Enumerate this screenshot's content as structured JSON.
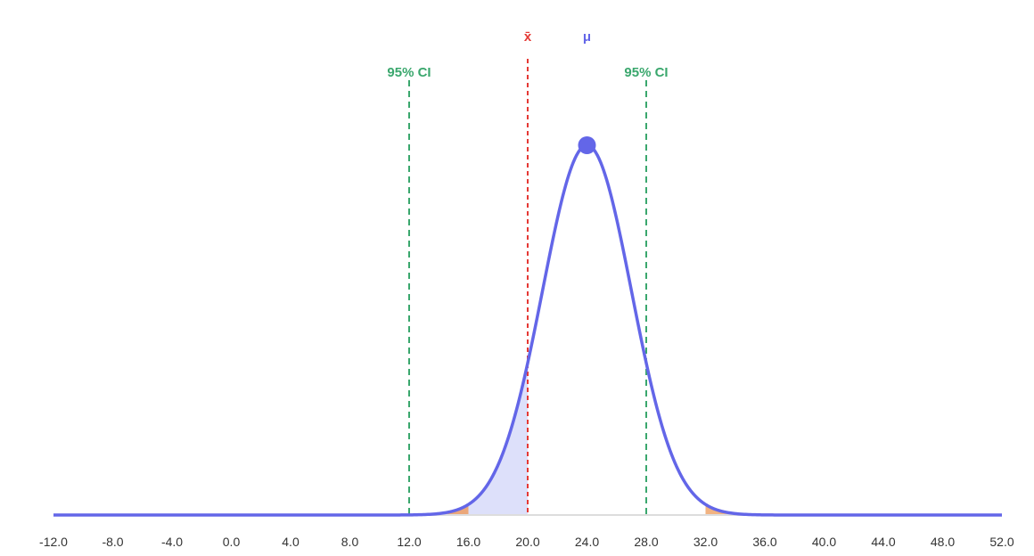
{
  "chart_data": {
    "type": "area",
    "distribution": "normal",
    "mean": 24.0,
    "sd": 3.0,
    "xlim": [
      -12,
      52
    ],
    "x_ticks": [
      "-12.0",
      "-8.0",
      "-4.0",
      "0.0",
      "4.0",
      "8.0",
      "12.0",
      "16.0",
      "20.0",
      "24.0",
      "28.0",
      "32.0",
      "36.0",
      "40.0",
      "44.0",
      "48.0",
      "52.0"
    ],
    "mu": {
      "label": "μ",
      "x": 24.0,
      "color": "#6366e8"
    },
    "sample_mean": {
      "label": "x̄",
      "x": 20.0,
      "color": "#e53935"
    },
    "ci_lines": [
      {
        "label": "95% CI",
        "x": 12.0,
        "color": "#3aa76d"
      },
      {
        "label": "95% CI",
        "x": 28.0,
        "color": "#3aa76d"
      }
    ],
    "shaded_regions": [
      {
        "name": "left-tail",
        "from": 12.0,
        "to": 16.0,
        "color": "#eba77a"
      },
      {
        "name": "middle",
        "from": 16.0,
        "to": 20.0,
        "color": "#dde0fa"
      },
      {
        "name": "right-tail",
        "from": 32.0,
        "to": 36.0,
        "color": "#f1b382"
      }
    ],
    "curve_color": "#6366e8",
    "axis_color": "#dddddd",
    "grid": false
  }
}
